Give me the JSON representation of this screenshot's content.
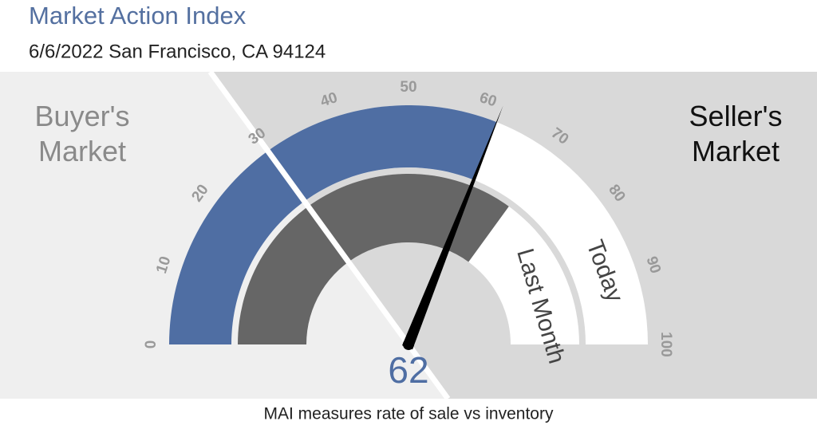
{
  "chart_data": {
    "type": "gauge",
    "title": "Market Action Index",
    "subtitle": "6/6/2022 San Francisco, CA 94124",
    "zones": [
      "Buyer's Market",
      "Seller's Market"
    ],
    "threshold": 30,
    "xlim": [
      0,
      100
    ],
    "xticks": [
      0,
      10,
      20,
      30,
      40,
      50,
      60,
      70,
      80,
      90,
      100
    ],
    "series": [
      {
        "name": "Today",
        "color": "#4f6ea3",
        "value": 62
      },
      {
        "name": "Last Month",
        "color": "#666666",
        "value": 70
      }
    ],
    "note": "MAI measures rate of sale vs inventory"
  }
}
